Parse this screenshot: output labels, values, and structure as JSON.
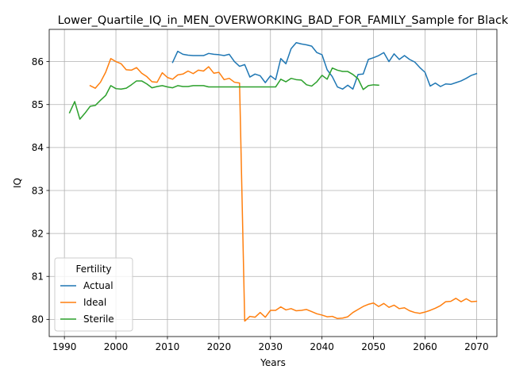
{
  "chart_data": {
    "type": "line",
    "title": "Lower_Quartile_IQ_in_MEN_OVERWORKING_BAD_FOR_FAMILY_Sample for Black_",
    "xlabel": "Years",
    "ylabel": "IQ",
    "xlim": [
      1987.05,
      2073.95
    ],
    "ylim": [
      79.6,
      86.75
    ],
    "xticks": [
      1990,
      2000,
      2010,
      2020,
      2030,
      2040,
      2050,
      2060,
      2070
    ],
    "yticks": [
      80,
      81,
      82,
      83,
      84,
      85,
      86
    ],
    "grid": true,
    "legend": {
      "title": "Fertility",
      "position": "lower-left"
    },
    "series": [
      {
        "name": "Actual",
        "color": "#1f77b4",
        "x": [
          2011,
          2012,
          2013,
          2014,
          2015,
          2016,
          2017,
          2018,
          2019,
          2020,
          2021,
          2022,
          2023,
          2024,
          2025,
          2026,
          2027,
          2028,
          2029,
          2030,
          2031,
          2032,
          2033,
          2034,
          2035,
          2036,
          2037,
          2038,
          2039,
          2040,
          2041,
          2042,
          2043,
          2044,
          2045,
          2046,
          2047,
          2048,
          2049,
          2050,
          2051,
          2052,
          2053,
          2054,
          2055,
          2056,
          2057,
          2058,
          2059,
          2060,
          2061,
          2062,
          2063,
          2064,
          2065,
          2066,
          2067,
          2068,
          2069,
          2070
        ],
        "y": [
          85.98,
          86.24,
          86.17,
          86.15,
          86.14,
          86.14,
          86.14,
          86.19,
          86.17,
          86.16,
          86.14,
          86.17,
          86.0,
          85.89,
          85.93,
          85.64,
          85.71,
          85.67,
          85.51,
          85.67,
          85.58,
          86.07,
          85.95,
          86.3,
          86.44,
          86.41,
          86.39,
          86.36,
          86.21,
          86.16,
          85.81,
          85.65,
          85.41,
          85.36,
          85.45,
          85.36,
          85.7,
          85.71,
          86.05,
          86.09,
          86.14,
          86.21,
          86.0,
          86.18,
          86.05,
          86.14,
          86.05,
          85.99,
          85.86,
          85.75,
          85.43,
          85.5,
          85.42,
          85.48,
          85.47,
          85.51,
          85.55,
          85.61,
          85.68,
          85.72
        ]
      },
      {
        "name": "Ideal",
        "color": "#ff7f0e",
        "x": [
          1995,
          1996,
          1997,
          1998,
          1999,
          2000,
          2001,
          2002,
          2003,
          2004,
          2005,
          2006,
          2007,
          2008,
          2009,
          2010,
          2011,
          2012,
          2013,
          2014,
          2015,
          2016,
          2017,
          2018,
          2019,
          2020,
          2021,
          2022,
          2023,
          2024,
          2025,
          2026,
          2027,
          2028,
          2029,
          2030,
          2031,
          2032,
          2033,
          2034,
          2035,
          2036,
          2037,
          2038,
          2039,
          2040,
          2041,
          2042,
          2043,
          2044,
          2045,
          2046,
          2047,
          2048,
          2049,
          2050,
          2051,
          2052,
          2053,
          2054,
          2055,
          2056,
          2057,
          2058,
          2059,
          2060,
          2061,
          2062,
          2063,
          2064,
          2065,
          2066,
          2067,
          2068,
          2069,
          2070
        ],
        "y": [
          85.44,
          85.38,
          85.52,
          85.75,
          86.07,
          86.0,
          85.95,
          85.81,
          85.8,
          85.86,
          85.73,
          85.65,
          85.53,
          85.52,
          85.74,
          85.63,
          85.59,
          85.69,
          85.71,
          85.78,
          85.72,
          85.8,
          85.78,
          85.88,
          85.73,
          85.75,
          85.58,
          85.61,
          85.52,
          85.5,
          79.96,
          80.07,
          80.05,
          80.16,
          80.05,
          80.21,
          80.21,
          80.29,
          80.22,
          80.25,
          80.2,
          80.21,
          80.23,
          80.18,
          80.13,
          80.1,
          80.06,
          80.07,
          80.02,
          80.03,
          80.06,
          80.16,
          80.23,
          80.3,
          80.35,
          80.38,
          80.3,
          80.37,
          80.28,
          80.33,
          80.25,
          80.27,
          80.2,
          80.16,
          80.14,
          80.17,
          80.21,
          80.26,
          80.32,
          80.41,
          80.42,
          80.49,
          80.41,
          80.48,
          80.41,
          80.42
        ]
      },
      {
        "name": "Sterile",
        "color": "#2ca02c",
        "x": [
          1991,
          1992,
          1993,
          1994,
          1995,
          1996,
          1997,
          1998,
          1999,
          2000,
          2001,
          2002,
          2003,
          2004,
          2005,
          2006,
          2007,
          2008,
          2009,
          2010,
          2011,
          2012,
          2013,
          2014,
          2015,
          2016,
          2017,
          2018,
          2019,
          2020,
          2021,
          2022,
          2023,
          2024,
          2025,
          2026,
          2027,
          2028,
          2029,
          2030,
          2031,
          2032,
          2033,
          2034,
          2035,
          2036,
          2037,
          2038,
          2039,
          2040,
          2041,
          2042,
          2043,
          2044,
          2045,
          2046,
          2047,
          2048,
          2049,
          2050,
          2051
        ],
        "y": [
          84.81,
          85.07,
          84.66,
          84.8,
          84.96,
          84.98,
          85.1,
          85.21,
          85.44,
          85.37,
          85.36,
          85.38,
          85.46,
          85.55,
          85.55,
          85.48,
          85.39,
          85.42,
          85.44,
          85.41,
          85.39,
          85.44,
          85.42,
          85.42,
          85.44,
          85.44,
          85.44,
          85.41,
          85.41,
          85.41,
          85.41,
          85.41,
          85.41,
          85.41,
          85.41,
          85.41,
          85.41,
          85.41,
          85.41,
          85.41,
          85.41,
          85.59,
          85.53,
          85.61,
          85.58,
          85.57,
          85.46,
          85.43,
          85.53,
          85.68,
          85.59,
          85.85,
          85.8,
          85.77,
          85.77,
          85.7,
          85.6,
          85.35,
          85.44,
          85.46,
          85.45
        ]
      }
    ]
  }
}
